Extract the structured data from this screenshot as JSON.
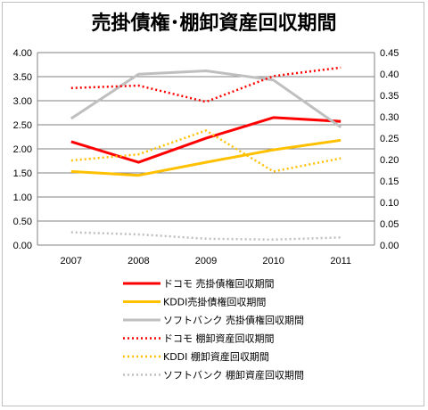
{
  "chart_data": {
    "type": "line",
    "title": "売掛債権･棚卸資産回収期間",
    "categories": [
      "2007",
      "2008",
      "2009",
      "2010",
      "2011"
    ],
    "left_axis": {
      "ylim": [
        0,
        4
      ],
      "ticks": [
        "0.00",
        "0.50",
        "1.00",
        "1.50",
        "2.00",
        "2.50",
        "3.00",
        "3.50",
        "4.00"
      ]
    },
    "right_axis": {
      "ylim": [
        0,
        0.45
      ],
      "ticks": [
        "0.00",
        "0.05",
        "0.10",
        "0.15",
        "0.20",
        "0.25",
        "0.30",
        "0.35",
        "0.40",
        "0.45"
      ]
    },
    "grid": true,
    "legend_position": "bottom",
    "series": [
      {
        "name": "ドコモ 売掛債権回収期間",
        "axis": "left",
        "color": "#ff0000",
        "style": "solid",
        "values": [
          2.15,
          1.72,
          2.22,
          2.65,
          2.57
        ]
      },
      {
        "name": "KDDI売掛債権回収期間",
        "axis": "left",
        "color": "#ffc000",
        "style": "solid",
        "values": [
          1.53,
          1.45,
          1.72,
          1.98,
          2.18
        ]
      },
      {
        "name": "ソフトバンク 売掛債権回収期間",
        "axis": "left",
        "color": "#bfbfbf",
        "style": "solid",
        "values": [
          2.63,
          3.55,
          3.62,
          3.43,
          2.45
        ]
      },
      {
        "name": "ドコモ 棚卸資産回収期間",
        "axis": "right",
        "color": "#ff0000",
        "style": "dotted",
        "values": [
          0.367,
          0.373,
          0.335,
          0.395,
          0.415
        ]
      },
      {
        "name": "KDDI 棚卸資産回収期間",
        "axis": "right",
        "color": "#ffc000",
        "style": "dotted",
        "values": [
          0.198,
          0.212,
          0.268,
          0.172,
          0.203
        ]
      },
      {
        "name": "ソフトバンク 棚卸資産回収期間",
        "axis": "right",
        "color": "#bfbfbf",
        "style": "dotted",
        "values": [
          0.03,
          0.025,
          0.015,
          0.013,
          0.018
        ]
      }
    ]
  }
}
